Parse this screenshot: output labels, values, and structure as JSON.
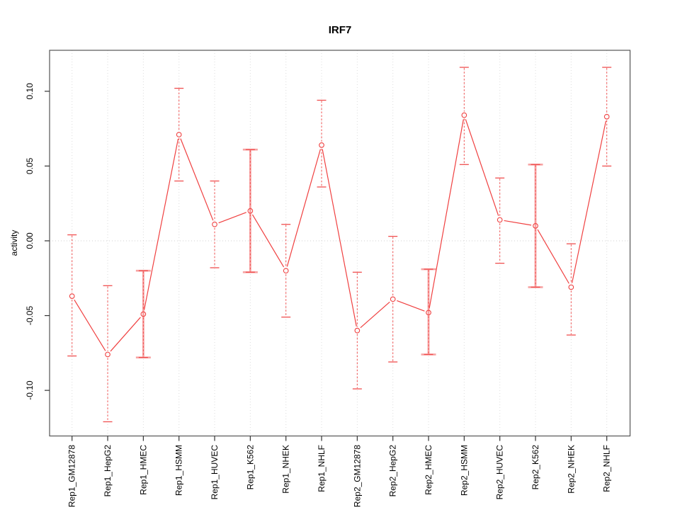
{
  "figure": {
    "background": "#ffffff"
  },
  "chart_data": {
    "type": "line",
    "title": "IRF7",
    "xlabel": "",
    "ylabel": "activity",
    "legend": "none",
    "categories": [
      "Rep1_GM12878",
      "Rep1_HepG2",
      "Rep1_HMEC",
      "Rep1_HSMM",
      "Rep1_HUVEC",
      "Rep1_K562",
      "Rep1_NHEK",
      "Rep1_NHLF",
      "Rep2_GM12878",
      "Rep2_HepG2",
      "Rep2_HMEC",
      "Rep2_HSMM",
      "Rep2_HUVEC",
      "Rep2_K562",
      "Rep2_NHEK",
      "Rep2_NHLF"
    ],
    "series": [
      {
        "name": "activity",
        "values": [
          -0.037,
          -0.076,
          -0.049,
          0.071,
          0.011,
          0.02,
          -0.02,
          0.064,
          -0.06,
          -0.039,
          -0.048,
          0.084,
          0.014,
          0.01,
          -0.031,
          0.083
        ]
      }
    ],
    "error_bars": {
      "low": [
        -0.077,
        -0.121,
        -0.078,
        0.04,
        -0.018,
        -0.021,
        -0.051,
        0.036,
        -0.099,
        -0.081,
        -0.076,
        0.051,
        -0.015,
        -0.031,
        -0.063,
        0.05
      ],
      "high": [
        0.004,
        -0.03,
        -0.02,
        0.102,
        0.04,
        0.061,
        0.011,
        0.094,
        -0.021,
        0.003,
        -0.019,
        0.116,
        0.042,
        0.051,
        -0.002,
        0.116
      ]
    },
    "thick_bar_categories": [
      "Rep1_HMEC",
      "Rep1_K562",
      "Rep2_HMEC",
      "Rep2_K562"
    ],
    "yticks": [
      -0.1,
      -0.05,
      0.0,
      0.05,
      0.1
    ],
    "ytick_labels": [
      "-0.10",
      "-0.05",
      "0.00",
      "0.05",
      "0.10"
    ],
    "ylim": [
      -0.1305,
      0.1274
    ],
    "grid": {
      "vertical_dotted_per_category": true,
      "horizontal_zero_line_dotted": true
    },
    "colors": {
      "series": "#f04040",
      "error_bar_thin": "#f05050",
      "error_bar_thick": "#f7a3a3",
      "grid": "#dcdcdc",
      "zero_line": "#cfcfcf",
      "box": "#555555",
      "tick": "#333333"
    }
  }
}
